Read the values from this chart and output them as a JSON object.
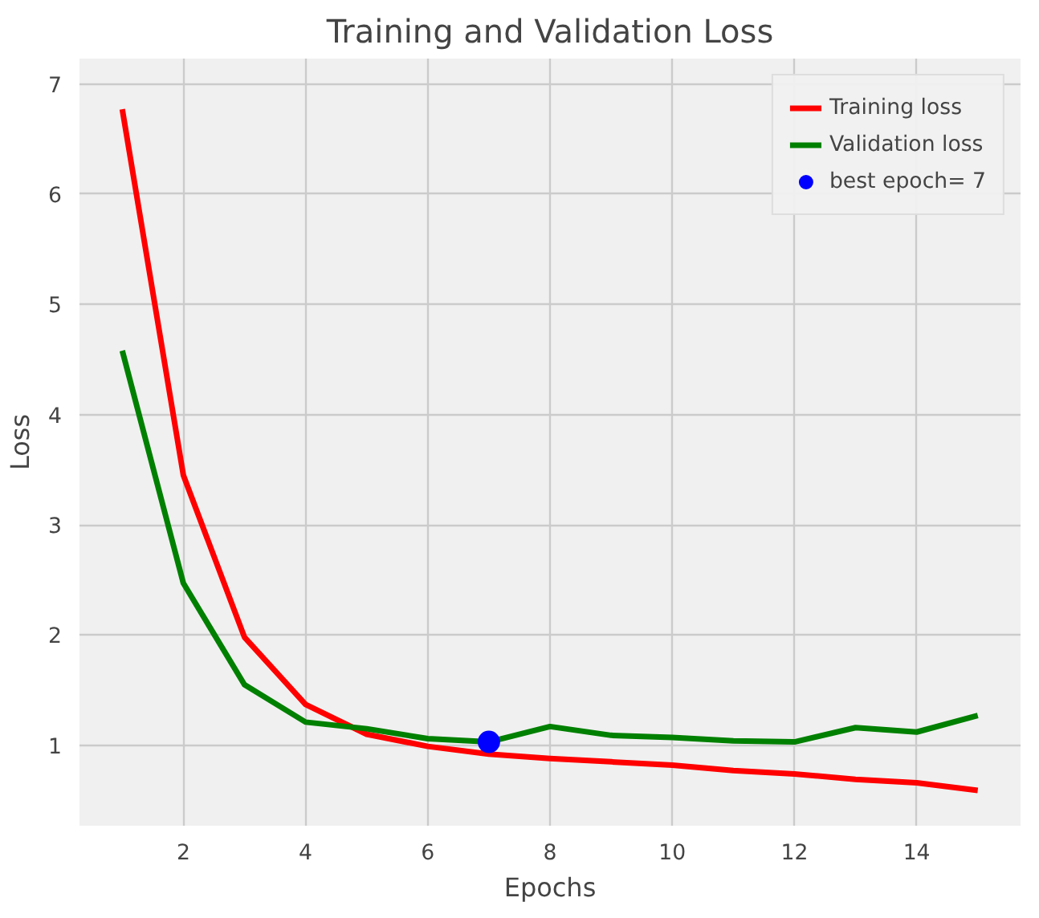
{
  "chart_data": {
    "type": "line",
    "title": "Training and Validation Loss",
    "xlabel": "Epochs",
    "ylabel": "Loss",
    "x": [
      1,
      2,
      3,
      4,
      5,
      6,
      7,
      8,
      9,
      10,
      11,
      12,
      13,
      14,
      15
    ],
    "series": [
      {
        "name": "Training loss",
        "color": "#ff0000",
        "values": [
          6.77,
          3.45,
          1.98,
          1.37,
          1.1,
          0.99,
          0.92,
          0.88,
          0.85,
          0.82,
          0.77,
          0.74,
          0.69,
          0.66,
          0.59
        ]
      },
      {
        "name": "Validation loss",
        "color": "#008000",
        "values": [
          4.58,
          2.47,
          1.55,
          1.21,
          1.15,
          1.06,
          1.03,
          1.17,
          1.09,
          1.07,
          1.04,
          1.03,
          1.16,
          1.12,
          1.27
        ]
      },
      {
        "name": "best epoch= 7",
        "color": "#0000ff",
        "type": "scatter",
        "marker": "circle",
        "x": [
          7
        ],
        "values": [
          1.03
        ]
      }
    ],
    "xlim": [
      0.3,
      15.7
    ],
    "ylim": [
      0.27,
      7.23
    ],
    "xticks": [
      2,
      4,
      6,
      8,
      10,
      12,
      14
    ],
    "yticks": [
      1,
      2,
      3,
      4,
      5,
      6,
      7
    ],
    "grid": true,
    "legend": "top right",
    "marker": "none",
    "line_style": "solid"
  }
}
